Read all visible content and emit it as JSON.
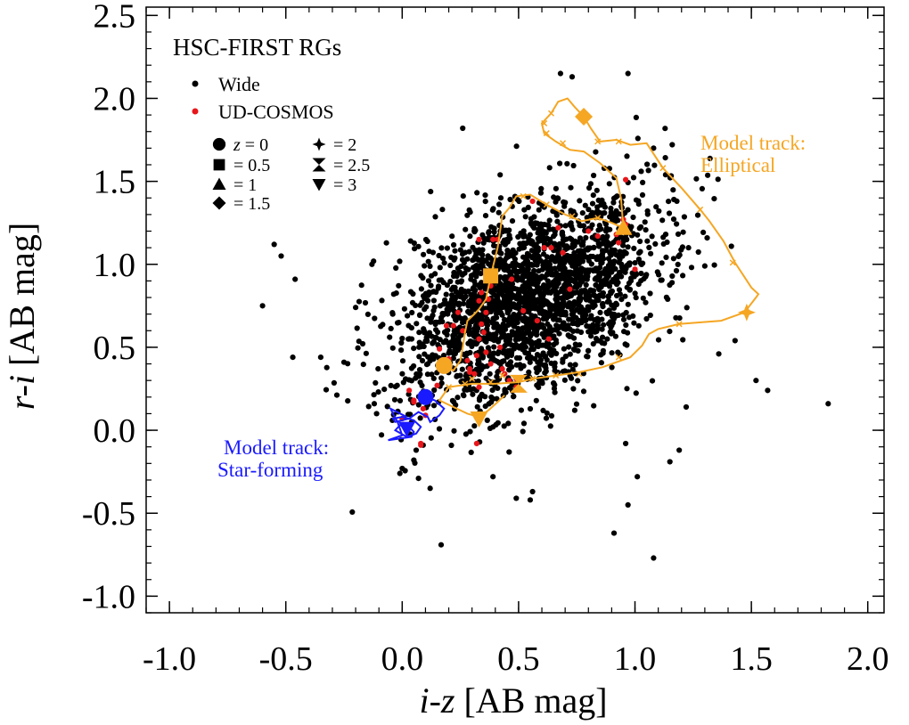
{
  "chart_data": {
    "type": "scatter",
    "title": "HSC-FIRST RGs",
    "xlabel": {
      "italic": "i-z",
      "rest": " [AB mag]"
    },
    "ylabel": {
      "italic": "r-i",
      "rest": " [AB mag]"
    },
    "xlim": [
      -1.1,
      2.07
    ],
    "ylim": [
      -1.1,
      2.55
    ],
    "xticks": [
      -1.0,
      -0.5,
      0.0,
      0.5,
      1.0,
      1.5,
      2.0
    ],
    "xtick_labels": [
      "-1.0",
      "-0.5",
      "0.0",
      "0.5",
      "1.0",
      "1.5",
      "2.0"
    ],
    "yticks": [
      -1.0,
      -0.5,
      0.0,
      0.5,
      1.0,
      1.5,
      2.0,
      2.5
    ],
    "ytick_labels": [
      "-1.0",
      "-0.5",
      "0.0",
      "0.5",
      "1.0",
      "1.5",
      "2.0",
      "2.5"
    ],
    "x_minor_step": 0.1,
    "y_minor_step": 0.1,
    "colors": {
      "wide": "#000000",
      "ud": "#e8161b",
      "elliptical": "#f5a623",
      "starforming": "#1a1aff"
    },
    "legend": [
      {
        "label": "Wide",
        "color": "#000000"
      },
      {
        "label": "UD-COSMOS",
        "color": "#e8161b"
      }
    ],
    "marker_legend": [
      {
        "symbol": "circle",
        "prefix": "z",
        "label": " = 0"
      },
      {
        "symbol": "square",
        "prefix": "",
        "label": "= 0.5"
      },
      {
        "symbol": "triangle-up",
        "prefix": "",
        "label": "= 1"
      },
      {
        "symbol": "diamond",
        "prefix": "",
        "label": "= 1.5"
      },
      {
        "symbol": "star4",
        "prefix": "",
        "label": "= 2"
      },
      {
        "symbol": "hourglass",
        "prefix": "",
        "label": "= 2.5"
      },
      {
        "symbol": "triangle-down",
        "prefix": "",
        "label": "= 3"
      }
    ],
    "annotations": {
      "elliptical": [
        "Model track:",
        "Elliptical"
      ],
      "starforming": [
        "Model track:",
        "Star-forming"
      ]
    },
    "wide_cloud": {
      "count": 2400,
      "note": "dense cloud centred near i-z 0.55, r-i 0.8, elongated along the red-sequence track",
      "center": [
        0.55,
        0.8
      ],
      "sigma_major": 0.36,
      "sigma_minor": 0.22,
      "angle_deg": 52
    },
    "wide_outliers": [
      [
        -0.55,
        1.12
      ],
      [
        -0.52,
        1.05
      ],
      [
        -0.46,
        0.91
      ],
      [
        -0.6,
        0.75
      ],
      [
        -0.47,
        0.44
      ],
      [
        -0.35,
        0.44
      ],
      [
        -0.25,
        0.41
      ],
      [
        -0.2,
        0.74
      ],
      [
        -0.13,
        1.0
      ],
      [
        0.26,
        1.82
      ],
      [
        0.68,
        2.15
      ],
      [
        0.73,
        2.13
      ],
      [
        0.97,
        2.15
      ],
      [
        1.08,
        1.7
      ],
      [
        1.23,
        1.1
      ],
      [
        1.3,
        0.99
      ],
      [
        1.36,
        0.46
      ],
      [
        1.43,
        0.54
      ],
      [
        1.52,
        0.3
      ],
      [
        1.57,
        0.24
      ],
      [
        1.83,
        0.16
      ],
      [
        1.22,
        0.14
      ],
      [
        1.19,
        -0.12
      ],
      [
        1.15,
        -0.19
      ],
      [
        1.01,
        -0.28
      ],
      [
        0.96,
        -0.08
      ],
      [
        0.97,
        -0.45
      ],
      [
        0.91,
        -0.62
      ],
      [
        1.08,
        -0.77
      ],
      [
        0.55,
        -0.42
      ],
      [
        0.49,
        -0.41
      ],
      [
        0.56,
        -0.37
      ],
      [
        0.12,
        -0.35
      ],
      [
        0.07,
        -0.29
      ],
      [
        0.0,
        -0.23
      ],
      [
        -0.01,
        -0.26
      ],
      [
        0.05,
        -0.18
      ],
      [
        0.06,
        -0.12
      ],
      [
        0.09,
        -0.09
      ],
      [
        -0.11,
        0.1
      ],
      [
        -0.12,
        0.16
      ],
      [
        0.39,
        -0.28
      ]
    ],
    "ud_points": [
      [
        0.05,
        0.17
      ],
      [
        0.05,
        0.18
      ],
      [
        0.08,
        -0.09
      ],
      [
        0.16,
        0.49
      ],
      [
        0.19,
        0.63
      ],
      [
        0.22,
        0.63
      ],
      [
        0.24,
        0.71
      ],
      [
        0.26,
        0.6
      ],
      [
        0.28,
        0.42
      ],
      [
        0.29,
        0.37
      ],
      [
        0.31,
        0.34
      ],
      [
        0.32,
        0.45
      ],
      [
        0.33,
        0.55
      ],
      [
        0.34,
        0.64
      ],
      [
        0.35,
        0.59
      ],
      [
        0.36,
        0.47
      ],
      [
        0.38,
        0.4
      ],
      [
        0.36,
        0.71
      ],
      [
        0.37,
        0.79
      ],
      [
        0.38,
        0.87
      ],
      [
        0.34,
        0.83
      ],
      [
        0.33,
        0.78
      ],
      [
        0.33,
        0.26
      ],
      [
        0.32,
        -0.08
      ],
      [
        0.33,
        1.15
      ],
      [
        0.39,
        1.15
      ],
      [
        0.41,
        1.15
      ],
      [
        0.43,
        0.37
      ],
      [
        0.44,
        0.34
      ],
      [
        0.42,
        0.5
      ],
      [
        0.46,
        0.3
      ],
      [
        0.49,
        0.31
      ],
      [
        0.47,
        0.91
      ],
      [
        0.49,
        0.26
      ],
      [
        0.52,
        0.72
      ],
      [
        0.56,
        1.38
      ],
      [
        0.58,
        0.66
      ],
      [
        0.61,
        1.1
      ],
      [
        0.63,
        0.55
      ],
      [
        0.64,
        1.1
      ],
      [
        0.67,
        1.22
      ],
      [
        0.72,
        0.85
      ],
      [
        0.69,
        1.07
      ],
      [
        0.8,
        1.2
      ],
      [
        0.84,
        1.17
      ],
      [
        0.92,
        1.18
      ],
      [
        0.93,
        1.13
      ],
      [
        0.94,
        1.21
      ],
      [
        0.95,
        1.27
      ],
      [
        0.96,
        1.24
      ],
      [
        0.96,
        1.51
      ],
      [
        1.0,
        0.97
      ],
      [
        0.15,
        0.27
      ],
      [
        0.09,
        0.13
      ],
      [
        0.03,
        0.24
      ],
      [
        0.0,
        0.07
      ],
      [
        0.1,
        0.09
      ],
      [
        0.2,
        0.43
      ],
      [
        0.29,
        0.35
      ],
      [
        0.08,
        -0.08
      ]
    ],
    "elliptical_track": [
      [
        0.18,
        0.39
      ],
      [
        0.22,
        0.36
      ],
      [
        0.25,
        0.42
      ],
      [
        0.26,
        0.5
      ],
      [
        0.27,
        0.59
      ],
      [
        0.28,
        0.66
      ],
      [
        0.31,
        0.7
      ],
      [
        0.33,
        0.73
      ],
      [
        0.36,
        0.79
      ],
      [
        0.38,
        0.93
      ],
      [
        0.41,
        1.1
      ],
      [
        0.43,
        1.29
      ],
      [
        0.46,
        1.34
      ],
      [
        0.49,
        1.41
      ],
      [
        0.55,
        1.42
      ],
      [
        0.62,
        1.36
      ],
      [
        0.7,
        1.3
      ],
      [
        0.77,
        1.26
      ],
      [
        0.84,
        1.28
      ],
      [
        0.9,
        1.25
      ],
      [
        0.95,
        1.22
      ],
      [
        0.94,
        1.4
      ],
      [
        0.92,
        1.52
      ],
      [
        0.85,
        1.61
      ],
      [
        0.78,
        1.68
      ],
      [
        0.72,
        1.69
      ],
      [
        0.66,
        1.74
      ],
      [
        0.61,
        1.79
      ],
      [
        0.6,
        1.85
      ],
      [
        0.64,
        1.91
      ],
      [
        0.67,
        1.98
      ],
      [
        0.71,
        2.0
      ],
      [
        0.74,
        1.95
      ],
      [
        0.78,
        1.89
      ],
      [
        0.81,
        1.82
      ],
      [
        0.85,
        1.74
      ],
      [
        0.92,
        1.75
      ],
      [
        0.98,
        1.72
      ],
      [
        1.05,
        1.73
      ],
      [
        1.12,
        1.58
      ],
      [
        1.2,
        1.46
      ],
      [
        1.28,
        1.33
      ],
      [
        1.32,
        1.26
      ],
      [
        1.38,
        1.14
      ],
      [
        1.43,
        1.01
      ],
      [
        1.5,
        0.86
      ],
      [
        1.53,
        0.82
      ],
      [
        1.52,
        0.8
      ],
      [
        1.47,
        0.71
      ],
      [
        1.37,
        0.66
      ],
      [
        1.19,
        0.64
      ],
      [
        1.1,
        0.61
      ],
      [
        1.06,
        0.58
      ],
      [
        1.03,
        0.51
      ],
      [
        0.98,
        0.44
      ],
      [
        0.86,
        0.38
      ],
      [
        0.76,
        0.35
      ],
      [
        0.66,
        0.33
      ],
      [
        0.56,
        0.31
      ],
      [
        0.5,
        0.29
      ],
      [
        0.4,
        0.28
      ],
      [
        0.3,
        0.28
      ],
      [
        0.2,
        0.26
      ],
      [
        0.16,
        0.18
      ],
      [
        0.22,
        0.14
      ],
      [
        0.28,
        0.1
      ],
      [
        0.33,
        0.08
      ],
      [
        0.37,
        0.12
      ],
      [
        0.41,
        0.17
      ],
      [
        0.44,
        0.21
      ]
    ],
    "elliptical_ticks": [
      [
        0.64,
        1.91
      ],
      [
        0.61,
        1.85
      ],
      [
        0.62,
        1.79
      ],
      [
        0.69,
        1.73
      ],
      [
        0.84,
        1.74
      ],
      [
        0.93,
        1.74
      ],
      [
        1.12,
        1.58
      ],
      [
        1.28,
        1.33
      ],
      [
        1.42,
        1.01
      ],
      [
        1.19,
        0.64
      ],
      [
        0.93,
        0.44
      ],
      [
        0.76,
        0.34
      ],
      [
        0.66,
        0.33
      ],
      [
        0.56,
        0.31
      ],
      [
        0.84,
        1.28
      ],
      [
        0.73,
        1.29
      ],
      [
        0.62,
        1.36
      ],
      [
        0.52,
        1.41
      ],
      [
        0.43,
        0.33
      ],
      [
        0.38,
        0.29
      ],
      [
        0.27,
        0.28
      ],
      [
        0.2,
        0.26
      ],
      [
        0.33,
        0.08
      ],
      [
        0.3,
        0.31
      ]
    ],
    "elliptical_markers": [
      {
        "symbol": "circle",
        "z": 0,
        "x": 0.18,
        "y": 0.39
      },
      {
        "symbol": "square",
        "z": 0.5,
        "x": 0.38,
        "y": 0.93
      },
      {
        "symbol": "triangle-up",
        "z": 1,
        "x": 0.95,
        "y": 1.22
      },
      {
        "symbol": "diamond",
        "z": 1.5,
        "x": 0.78,
        "y": 1.89
      },
      {
        "symbol": "star4",
        "z": 2,
        "x": 1.48,
        "y": 0.71
      },
      {
        "symbol": "hourglass",
        "z": 2.5,
        "x": 0.5,
        "y": 0.28
      },
      {
        "symbol": "triangle-down",
        "z": 3,
        "x": 0.33,
        "y": 0.07
      }
    ],
    "starforming_track": [
      [
        0.1,
        0.2
      ],
      [
        0.14,
        0.18
      ],
      [
        0.18,
        0.13
      ],
      [
        0.16,
        0.09
      ],
      [
        0.12,
        0.05
      ],
      [
        0.11,
        0.08
      ],
      [
        0.07,
        0.11
      ],
      [
        0.03,
        0.07
      ],
      [
        -0.03,
        0.05
      ],
      [
        -0.04,
        0.07
      ],
      [
        0.0,
        0.08
      ],
      [
        0.05,
        0.06
      ],
      [
        0.08,
        0.02
      ],
      [
        0.06,
        -0.02
      ],
      [
        0.02,
        -0.04
      ],
      [
        -0.03,
        0.0
      ],
      [
        -0.01,
        0.03
      ],
      [
        0.03,
        0.02
      ],
      [
        0.05,
        -0.01
      ],
      [
        0.04,
        -0.04
      ],
      [
        -0.01,
        -0.05
      ],
      [
        -0.06,
        -0.06
      ],
      [
        0.0,
        -0.03
      ],
      [
        -0.02,
        0.05
      ],
      [
        -0.04,
        0.1
      ],
      [
        -0.05,
        0.13
      ],
      [
        0.02,
        0.08
      ]
    ],
    "starforming_markers": [
      {
        "symbol": "circle",
        "z": 0,
        "x": 0.1,
        "y": 0.2
      },
      {
        "symbol": "triangle-down",
        "z": 3,
        "x": 0.02,
        "y": 0.01
      }
    ]
  }
}
